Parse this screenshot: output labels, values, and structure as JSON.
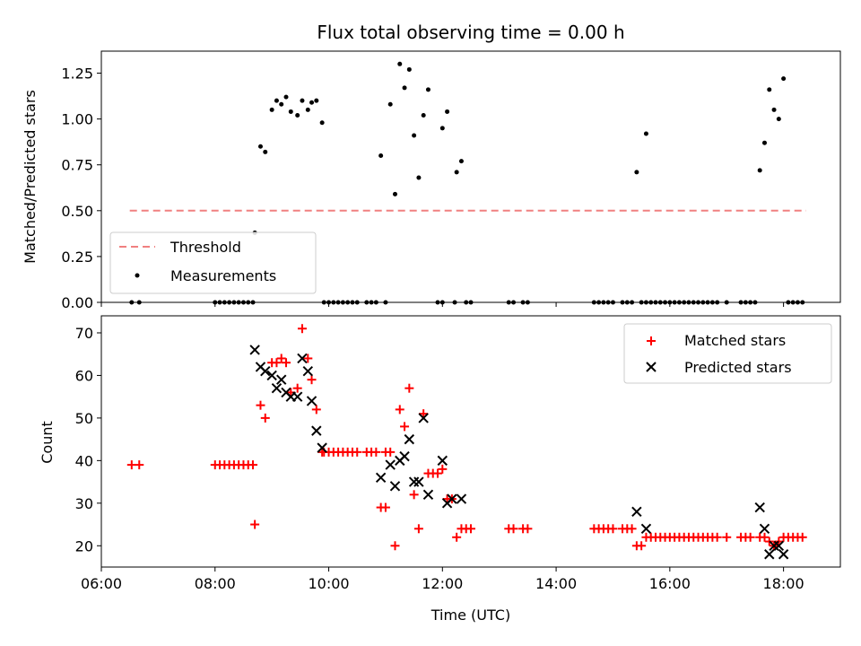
{
  "chart_data": [
    {
      "type": "scatter",
      "title": "Flux total observing time = 0.00 h",
      "xlabel": "",
      "ylabel": "Matched/Predicted stars",
      "xlim": [
        "06:00",
        "19:00"
      ],
      "ylim": [
        0,
        1.37
      ],
      "yticks": [
        "0.00",
        "0.25",
        "0.50",
        "0.75",
        "1.00",
        "1.25"
      ],
      "ytick_values": [
        0,
        0.25,
        0.5,
        0.75,
        1.0,
        1.25
      ],
      "legend": "lower-left",
      "threshold": {
        "name": "Threshold",
        "value": 0.5,
        "x_start": "06:30",
        "x_end": "18:24",
        "color": "#f08080"
      },
      "series": [
        {
          "name": "Measurements",
          "color": "#000000",
          "points": [
            [
              "06:32",
              0
            ],
            [
              "06:40",
              0
            ],
            [
              "08:00",
              0
            ],
            [
              "08:05",
              0
            ],
            [
              "08:10",
              0
            ],
            [
              "08:15",
              0
            ],
            [
              "08:20",
              0
            ],
            [
              "08:25",
              0
            ],
            [
              "08:30",
              0
            ],
            [
              "08:35",
              0
            ],
            [
              "08:40",
              0
            ],
            [
              "08:42",
              0.38
            ],
            [
              "08:48",
              0.85
            ],
            [
              "08:53",
              0.82
            ],
            [
              "09:00",
              1.05
            ],
            [
              "09:05",
              1.1
            ],
            [
              "09:10",
              1.08
            ],
            [
              "09:15",
              1.12
            ],
            [
              "09:20",
              1.04
            ],
            [
              "09:27",
              1.02
            ],
            [
              "09:32",
              1.1
            ],
            [
              "09:38",
              1.05
            ],
            [
              "09:42",
              1.09
            ],
            [
              "09:47",
              1.1
            ],
            [
              "09:53",
              0.98
            ],
            [
              "09:55",
              0
            ],
            [
              "10:00",
              0
            ],
            [
              "10:05",
              0
            ],
            [
              "10:10",
              0
            ],
            [
              "10:15",
              0
            ],
            [
              "10:20",
              0
            ],
            [
              "10:25",
              0
            ],
            [
              "10:30",
              0
            ],
            [
              "10:40",
              0
            ],
            [
              "10:45",
              0
            ],
            [
              "10:50",
              0
            ],
            [
              "11:00",
              0
            ],
            [
              "10:55",
              0.8
            ],
            [
              "11:05",
              1.08
            ],
            [
              "11:10",
              0.59
            ],
            [
              "11:15",
              1.3
            ],
            [
              "11:20",
              1.17
            ],
            [
              "11:25",
              1.27
            ],
            [
              "11:30",
              0.91
            ],
            [
              "11:35",
              0.68
            ],
            [
              "11:40",
              1.02
            ],
            [
              "11:45",
              1.16
            ],
            [
              "12:00",
              0.95
            ],
            [
              "12:05",
              1.04
            ],
            [
              "12:15",
              0.71
            ],
            [
              "12:20",
              0.77
            ],
            [
              "11:55",
              0
            ],
            [
              "12:00",
              0
            ],
            [
              "12:13",
              0
            ],
            [
              "12:25",
              0
            ],
            [
              "12:30",
              0
            ],
            [
              "13:10",
              0
            ],
            [
              "13:15",
              0
            ],
            [
              "13:25",
              0
            ],
            [
              "13:30",
              0
            ],
            [
              "14:40",
              0
            ],
            [
              "14:45",
              0
            ],
            [
              "14:50",
              0
            ],
            [
              "14:55",
              0
            ],
            [
              "15:00",
              0
            ],
            [
              "15:10",
              0
            ],
            [
              "15:15",
              0
            ],
            [
              "15:20",
              0
            ],
            [
              "15:30",
              0
            ],
            [
              "15:35",
              0
            ],
            [
              "15:40",
              0
            ],
            [
              "15:45",
              0
            ],
            [
              "15:50",
              0
            ],
            [
              "15:55",
              0
            ],
            [
              "16:00",
              0
            ],
            [
              "16:05",
              0
            ],
            [
              "16:10",
              0
            ],
            [
              "16:15",
              0
            ],
            [
              "16:20",
              0
            ],
            [
              "16:25",
              0
            ],
            [
              "16:30",
              0
            ],
            [
              "16:35",
              0
            ],
            [
              "16:40",
              0
            ],
            [
              "16:45",
              0
            ],
            [
              "16:50",
              0
            ],
            [
              "17:00",
              0
            ],
            [
              "17:15",
              0
            ],
            [
              "17:20",
              0
            ],
            [
              "17:25",
              0
            ],
            [
              "17:30",
              0
            ],
            [
              "15:25",
              0.71
            ],
            [
              "15:35",
              0.92
            ],
            [
              "17:35",
              0.72
            ],
            [
              "17:40",
              0.87
            ],
            [
              "17:45",
              1.16
            ],
            [
              "17:50",
              1.05
            ],
            [
              "17:55",
              1.0
            ],
            [
              "18:00",
              1.22
            ],
            [
              "18:05",
              0
            ],
            [
              "18:10",
              0
            ],
            [
              "18:15",
              0
            ],
            [
              "18:20",
              0
            ]
          ]
        }
      ]
    },
    {
      "type": "scatter",
      "title": "",
      "xlabel": "Time (UTC)",
      "ylabel": "Count",
      "xlim": [
        "06:00",
        "19:00"
      ],
      "ylim": [
        15,
        74
      ],
      "xticks": [
        "06:00",
        "08:00",
        "10:00",
        "12:00",
        "14:00",
        "16:00",
        "18:00"
      ],
      "yticks": [
        "20",
        "30",
        "40",
        "50",
        "60",
        "70"
      ],
      "ytick_values": [
        20,
        30,
        40,
        50,
        60,
        70
      ],
      "legend": "top-right",
      "series": [
        {
          "name": "Matched stars",
          "marker": "plus",
          "color": "#ff0000",
          "points": [
            [
              "06:32",
              39
            ],
            [
              "06:40",
              39
            ],
            [
              "08:00",
              39
            ],
            [
              "08:05",
              39
            ],
            [
              "08:10",
              39
            ],
            [
              "08:15",
              39
            ],
            [
              "08:20",
              39
            ],
            [
              "08:25",
              39
            ],
            [
              "08:30",
              39
            ],
            [
              "08:35",
              39
            ],
            [
              "08:40",
              39
            ],
            [
              "08:42",
              25
            ],
            [
              "08:48",
              53
            ],
            [
              "08:53",
              50
            ],
            [
              "09:00",
              63
            ],
            [
              "09:05",
              63
            ],
            [
              "09:10",
              64
            ],
            [
              "09:15",
              63
            ],
            [
              "09:20",
              56
            ],
            [
              "09:27",
              57
            ],
            [
              "09:32",
              71
            ],
            [
              "09:38",
              64
            ],
            [
              "09:42",
              59
            ],
            [
              "09:47",
              52
            ],
            [
              "09:53",
              42
            ],
            [
              "09:55",
              42
            ],
            [
              "10:00",
              42
            ],
            [
              "10:05",
              42
            ],
            [
              "10:10",
              42
            ],
            [
              "10:15",
              42
            ],
            [
              "10:20",
              42
            ],
            [
              "10:25",
              42
            ],
            [
              "10:30",
              42
            ],
            [
              "10:40",
              42
            ],
            [
              "10:45",
              42
            ],
            [
              "10:50",
              42
            ],
            [
              "11:00",
              42
            ],
            [
              "10:55",
              29
            ],
            [
              "11:00",
              29
            ],
            [
              "11:05",
              42
            ],
            [
              "11:10",
              20
            ],
            [
              "11:15",
              52
            ],
            [
              "11:20",
              48
            ],
            [
              "11:25",
              57
            ],
            [
              "11:30",
              32
            ],
            [
              "11:35",
              24
            ],
            [
              "11:40",
              51
            ],
            [
              "11:45",
              37
            ],
            [
              "11:50",
              37
            ],
            [
              "11:55",
              37
            ],
            [
              "12:00",
              38
            ],
            [
              "12:05",
              31
            ],
            [
              "12:10",
              31
            ],
            [
              "12:15",
              22
            ],
            [
              "12:20",
              24
            ],
            [
              "12:25",
              24
            ],
            [
              "12:30",
              24
            ],
            [
              "13:10",
              24
            ],
            [
              "13:15",
              24
            ],
            [
              "13:25",
              24
            ],
            [
              "13:30",
              24
            ],
            [
              "14:40",
              24
            ],
            [
              "14:45",
              24
            ],
            [
              "14:50",
              24
            ],
            [
              "14:55",
              24
            ],
            [
              "15:00",
              24
            ],
            [
              "15:10",
              24
            ],
            [
              "15:15",
              24
            ],
            [
              "15:20",
              24
            ],
            [
              "15:25",
              20
            ],
            [
              "15:30",
              20
            ],
            [
              "15:35",
              22
            ],
            [
              "15:40",
              22
            ],
            [
              "15:45",
              22
            ],
            [
              "15:50",
              22
            ],
            [
              "15:55",
              22
            ],
            [
              "16:00",
              22
            ],
            [
              "16:05",
              22
            ],
            [
              "16:10",
              22
            ],
            [
              "16:15",
              22
            ],
            [
              "16:20",
              22
            ],
            [
              "16:25",
              22
            ],
            [
              "16:30",
              22
            ],
            [
              "16:35",
              22
            ],
            [
              "16:40",
              22
            ],
            [
              "16:45",
              22
            ],
            [
              "16:50",
              22
            ],
            [
              "17:00",
              22
            ],
            [
              "17:15",
              22
            ],
            [
              "17:20",
              22
            ],
            [
              "17:25",
              22
            ],
            [
              "17:35",
              22
            ],
            [
              "17:40",
              22
            ],
            [
              "17:45",
              21
            ],
            [
              "17:50",
              20
            ],
            [
              "17:55",
              21
            ],
            [
              "18:00",
              22
            ],
            [
              "18:05",
              22
            ],
            [
              "18:10",
              22
            ],
            [
              "18:15",
              22
            ],
            [
              "18:20",
              22
            ]
          ]
        },
        {
          "name": "Predicted stars",
          "marker": "x",
          "color": "#000000",
          "points": [
            [
              "08:42",
              66
            ],
            [
              "08:48",
              62
            ],
            [
              "08:53",
              61
            ],
            [
              "09:00",
              60
            ],
            [
              "09:05",
              57
            ],
            [
              "09:10",
              59
            ],
            [
              "09:15",
              56
            ],
            [
              "09:20",
              55
            ],
            [
              "09:27",
              55
            ],
            [
              "09:32",
              64
            ],
            [
              "09:38",
              61
            ],
            [
              "09:42",
              54
            ],
            [
              "09:47",
              47
            ],
            [
              "09:53",
              43
            ],
            [
              "10:55",
              36
            ],
            [
              "11:05",
              39
            ],
            [
              "11:10",
              34
            ],
            [
              "11:15",
              40
            ],
            [
              "11:20",
              41
            ],
            [
              "11:25",
              45
            ],
            [
              "11:30",
              35
            ],
            [
              "11:35",
              35
            ],
            [
              "11:40",
              50
            ],
            [
              "11:45",
              32
            ],
            [
              "12:00",
              40
            ],
            [
              "12:05",
              30
            ],
            [
              "12:10",
              31
            ],
            [
              "12:20",
              31
            ],
            [
              "15:25",
              28
            ],
            [
              "15:35",
              24
            ],
            [
              "17:35",
              29
            ],
            [
              "17:40",
              24
            ],
            [
              "17:45",
              18
            ],
            [
              "17:50",
              20
            ],
            [
              "17:55",
              20
            ],
            [
              "18:00",
              18
            ]
          ]
        }
      ]
    }
  ]
}
